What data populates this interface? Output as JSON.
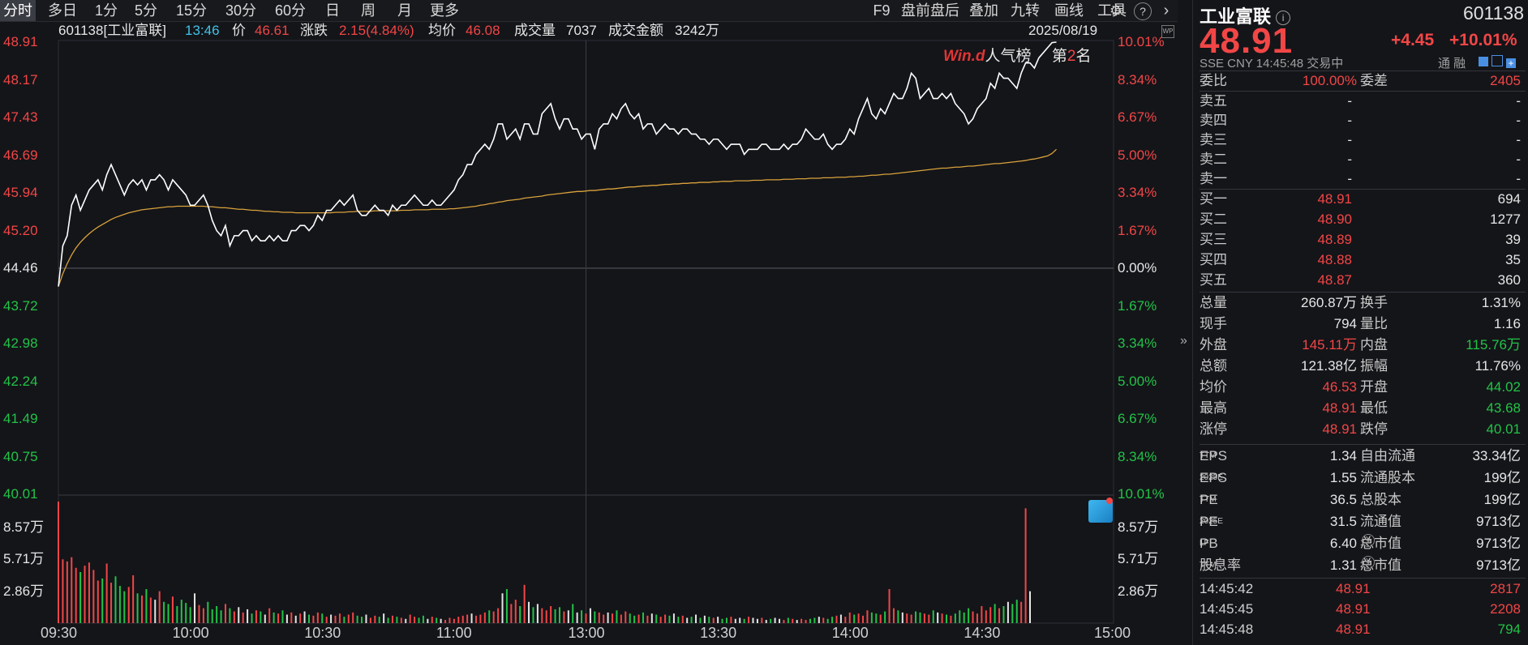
{
  "toolbar": {
    "periods": [
      "分时",
      "多日",
      "1分",
      "5分",
      "15分",
      "30分",
      "60分",
      "日",
      "周",
      "月",
      "更多"
    ],
    "active_period": "分时",
    "tools": [
      "F9",
      "盘前盘后",
      "叠加",
      "九转",
      "画线",
      "工具"
    ]
  },
  "info": {
    "code_name": "601138[工业富联]",
    "time": "13:46",
    "price_label": "价",
    "price": "46.61",
    "change_label": "涨跌",
    "change": "2.15(4.84%)",
    "avg_label": "均价",
    "avg": "46.08",
    "volume_label": "成交量",
    "volume": "7037",
    "amount_label": "成交金额",
    "amount": "3242万",
    "date": "2025/08/19"
  },
  "rank": {
    "logo": "Win.d",
    "label": "人气榜",
    "prefix": "第",
    "value": "2",
    "suffix": "名"
  },
  "chart_data": {
    "type": "line",
    "price_axis": {
      "left_ticks": [
        "48.91",
        "48.17",
        "47.43",
        "46.69",
        "45.94",
        "45.20",
        "44.46",
        "43.72",
        "42.98",
        "42.24",
        "41.49",
        "40.75",
        "40.01"
      ],
      "right_ticks": [
        "10.01%",
        "8.34%",
        "6.67%",
        "5.00%",
        "3.34%",
        "1.67%",
        "0.00%",
        "1.67%",
        "3.34%",
        "5.00%",
        "6.67%",
        "8.34%",
        "10.01%"
      ],
      "prev_close": 44.46,
      "ylim": [
        40.01,
        48.91
      ]
    },
    "volume_axis": {
      "ticks": [
        "8.57万",
        "5.71万",
        "2.86万"
      ],
      "ylim": [
        0,
        114300
      ]
    },
    "x_ticks": [
      "09:30",
      "10:00",
      "10:30",
      "11:00",
      "13:00",
      "13:30",
      "14:00",
      "14:30",
      "15:00"
    ],
    "colors": {
      "price_line": "#ffffff",
      "avg_line": "#d9a23c",
      "up": "#f24646",
      "down": "#22c348",
      "neutral": "#e6e6e6"
    },
    "series": [
      {
        "values": [
          44.1,
          44.9,
          45.1,
          45.7,
          45.9,
          45.6,
          45.8,
          46.0,
          46.1,
          46.2,
          46.0,
          46.3,
          46.5,
          46.3,
          46.1,
          45.9,
          46.1,
          46.2,
          46.1,
          46.2,
          46.0,
          46.2,
          46.2,
          46.3,
          46.2,
          46.0,
          46.2,
          46.1,
          46.0,
          45.9,
          45.7,
          45.7,
          45.8,
          45.9,
          45.7,
          45.4,
          45.2,
          45.1,
          45.3,
          44.9,
          45.1,
          45.1,
          45.2,
          45.2,
          45.0,
          45.1,
          45.0,
          45.0,
          45.1,
          45.0,
          45.1,
          45.0,
          45.0,
          45.2,
          45.2,
          45.3,
          45.3,
          45.2,
          45.3,
          45.5,
          45.4,
          45.6,
          45.6,
          45.7,
          45.8,
          45.7,
          45.8,
          45.9,
          45.6,
          45.5,
          45.5,
          45.6,
          45.7,
          45.6,
          45.6,
          45.5,
          45.7,
          45.6,
          45.7,
          45.7,
          45.8,
          45.9,
          45.8,
          45.7,
          45.7,
          45.8,
          45.7,
          45.7,
          45.8,
          45.9,
          46.0,
          46.2,
          46.3,
          46.5,
          46.5,
          46.7,
          46.8,
          46.9,
          46.8,
          47.0,
          47.3,
          47.3,
          47.0,
          47.1,
          47.2,
          47.0,
          47.3,
          47.3,
          47.1,
          47.1,
          47.5,
          47.6,
          47.7,
          47.4,
          47.2,
          47.4,
          47.4,
          47.2,
          47.2,
          47.0,
          47.1,
          47.1,
          46.8,
          47.2,
          47.3,
          47.3,
          47.5,
          47.4,
          47.6,
          47.7,
          47.5,
          47.4,
          47.5,
          47.2,
          47.3,
          47.3,
          47.1,
          47.2,
          47.3,
          47.2,
          47.2,
          47.1,
          47.2,
          47.2,
          47.1,
          47.1,
          47.0,
          47.0,
          46.9,
          47.0,
          47.0,
          46.9,
          46.8,
          46.9,
          46.9,
          46.9,
          46.7,
          46.8,
          46.8,
          46.8,
          46.9,
          46.9,
          46.8,
          46.8,
          46.8,
          46.9,
          46.8,
          46.9,
          46.9,
          47.0,
          47.2,
          47.1,
          47.0,
          47.0,
          47.1,
          46.9,
          46.8,
          46.9,
          46.9,
          47.0,
          47.2,
          47.1,
          47.4,
          47.6,
          47.8,
          47.5,
          47.4,
          47.6,
          47.5,
          47.7,
          47.9,
          47.8,
          47.8,
          48.0,
          48.3,
          48.2,
          47.8,
          47.9,
          48.0,
          47.8,
          47.8,
          47.9,
          47.8,
          47.9,
          47.7,
          47.6,
          47.5,
          47.3,
          47.4,
          47.6,
          47.7,
          47.8,
          48.1,
          48.0,
          48.3,
          48.2,
          48.2,
          48.1,
          48.0,
          48.3,
          48.5,
          48.5,
          48.4,
          48.6,
          48.7,
          48.8,
          48.9,
          48.91
        ]
      },
      {
        "values": [
          44.1,
          44.35,
          44.55,
          44.72,
          44.86,
          44.97,
          45.06,
          45.14,
          45.21,
          45.27,
          45.32,
          45.37,
          45.42,
          45.46,
          45.49,
          45.52,
          45.55,
          45.57,
          45.59,
          45.61,
          45.62,
          45.63,
          45.64,
          45.65,
          45.66,
          45.67,
          45.67,
          45.68,
          45.68,
          45.68,
          45.68,
          45.68,
          45.68,
          45.68,
          45.67,
          45.67,
          45.66,
          45.65,
          45.65,
          45.64,
          45.63,
          45.62,
          45.62,
          45.61,
          45.6,
          45.6,
          45.59,
          45.58,
          45.58,
          45.57,
          45.57,
          45.56,
          45.56,
          45.56,
          45.55,
          45.55,
          45.55,
          45.55,
          45.55,
          45.55,
          45.55,
          45.55,
          45.55,
          45.56,
          45.56,
          45.56,
          45.57,
          45.57,
          45.58,
          45.58,
          45.58,
          45.58,
          45.59,
          45.59,
          45.59,
          45.59,
          45.59,
          45.59,
          45.6,
          45.6,
          45.6,
          45.61,
          45.61,
          45.61,
          45.61,
          45.62,
          45.62,
          45.62,
          45.62,
          45.63,
          45.63,
          45.64,
          45.65,
          45.66,
          45.67,
          45.68,
          45.7,
          45.71,
          45.73,
          45.74,
          45.76,
          45.77,
          45.79,
          45.8,
          45.81,
          45.82,
          45.84,
          45.85,
          45.86,
          45.87,
          45.88,
          45.9,
          45.91,
          45.92,
          45.93,
          45.94,
          45.95,
          45.96,
          45.97,
          45.97,
          45.98,
          45.99,
          45.99,
          46.0,
          46.01,
          46.02,
          46.02,
          46.03,
          46.04,
          46.05,
          46.06,
          46.06,
          46.07,
          46.08,
          46.08,
          46.09,
          46.09,
          46.1,
          46.11,
          46.11,
          46.12,
          46.12,
          46.13,
          46.13,
          46.14,
          46.14,
          46.15,
          46.15,
          46.15,
          46.16,
          46.16,
          46.17,
          46.17,
          46.17,
          46.18,
          46.18,
          46.18,
          46.18,
          46.19,
          46.19,
          46.19,
          46.2,
          46.2,
          46.2,
          46.2,
          46.21,
          46.21,
          46.21,
          46.22,
          46.22,
          46.22,
          46.23,
          46.23,
          46.23,
          46.24,
          46.24,
          46.24,
          46.25,
          46.25,
          46.25,
          46.26,
          46.26,
          46.27,
          46.27,
          46.28,
          46.29,
          46.29,
          46.3,
          46.31,
          46.31,
          46.32,
          46.33,
          46.34,
          46.35,
          46.36,
          46.37,
          46.38,
          46.39,
          46.4,
          46.41,
          46.42,
          46.43,
          46.43,
          46.44,
          46.45,
          46.45,
          46.46,
          46.47,
          46.47,
          46.48,
          46.49,
          46.5,
          46.51,
          46.52,
          46.52,
          46.53,
          46.54,
          46.55,
          46.56,
          46.57,
          46.58,
          46.6,
          46.61,
          46.63,
          46.65,
          46.67,
          46.72,
          46.8
        ]
      }
    ],
    "volume": [
      114300,
      60000,
      58000,
      62000,
      52000,
      48000,
      54000,
      57000,
      50000,
      40000,
      42000,
      56000,
      38000,
      44000,
      35000,
      30000,
      34000,
      45000,
      28000,
      26000,
      32000,
      24000,
      22000,
      30000,
      20000,
      18000,
      25000,
      16000,
      22000,
      19000,
      15000,
      28000,
      17000,
      14000,
      20000,
      13000,
      16000,
      12000,
      18000,
      14000,
      11000,
      15000,
      10000,
      13000,
      9000,
      12000,
      11000,
      8000,
      14000,
      10000,
      9000,
      12000,
      8000,
      10000,
      7000,
      9000,
      11000,
      8000,
      7000,
      10000,
      9000,
      6000,
      8000,
      7000,
      9000,
      6000,
      8000,
      10000,
      7000,
      6000,
      8000,
      5000,
      7000,
      6000,
      9000,
      5000,
      7000,
      6000,
      5000,
      4000,
      8000,
      6000,
      5000,
      7000,
      4000,
      6000,
      5000,
      4000,
      3000,
      5000,
      4000,
      6000,
      7000,
      8000,
      9000,
      7000,
      8000,
      10000,
      12000,
      11000,
      14000,
      28000,
      32000,
      18000,
      22000,
      16000,
      36000,
      20000,
      15000,
      18000,
      14000,
      12000,
      16000,
      13000,
      15000,
      11000,
      12000,
      18000,
      10000,
      12000,
      9000,
      14000,
      11000,
      10000,
      8000,
      10000,
      9000,
      12000,
      8000,
      11000,
      9000,
      7000,
      8000,
      10000,
      7000,
      9000,
      8000,
      6000,
      8000,
      7000,
      9000,
      6000,
      7000,
      5000,
      6000,
      8000,
      5000,
      7000,
      6000,
      5000,
      6000,
      4000,
      5000,
      6000,
      4000,
      5000,
      4000,
      6000,
      5000,
      4000,
      5000,
      3000,
      4000,
      5000,
      4000,
      3000,
      5000,
      4000,
      3000,
      4000,
      3000,
      4000,
      5000,
      6000,
      5000,
      4000,
      6000,
      7000,
      8000,
      6000,
      10000,
      8000,
      9000,
      7000,
      12000,
      10000,
      9000,
      8000,
      11000,
      32000,
      14000,
      12000,
      10000,
      9000,
      8000,
      11000,
      10000,
      9000,
      8000,
      12000,
      10000,
      9000,
      8000,
      7000,
      9000,
      12000,
      10000,
      14000,
      11000,
      9000,
      16000,
      12000,
      15000,
      18000,
      14000,
      16000,
      20000,
      18000,
      22000,
      20000,
      108000,
      30000
    ]
  },
  "panel": {
    "name": "工业富联",
    "code": "601138",
    "price": "48.91",
    "change": "+4.45",
    "change_pct": "+10.01%",
    "sub": "SSE  CNY  14:45:48  交易中",
    "sub_right": "通  融",
    "weibi_label": "委比",
    "weibi": "100.00%",
    "weicha_label": "委差",
    "weicha": "2405",
    "sell": [
      {
        "label": "卖五",
        "price": "-",
        "vol": "-"
      },
      {
        "label": "卖四",
        "price": "-",
        "vol": "-"
      },
      {
        "label": "卖三",
        "price": "-",
        "vol": "-"
      },
      {
        "label": "卖二",
        "price": "-",
        "vol": "-"
      },
      {
        "label": "卖一",
        "price": "-",
        "vol": "-"
      }
    ],
    "buy": [
      {
        "label": "买一",
        "price": "48.91",
        "vol": "694"
      },
      {
        "label": "买二",
        "price": "48.90",
        "vol": "1277"
      },
      {
        "label": "买三",
        "price": "48.89",
        "vol": "39"
      },
      {
        "label": "买四",
        "price": "48.88",
        "vol": "35"
      },
      {
        "label": "买五",
        "price": "48.87",
        "vol": "360"
      }
    ],
    "stats": [
      {
        "l1": "总量",
        "v1": "260.87万",
        "c1": "white",
        "l2": "换手",
        "v2": "1.31%",
        "c2": "white"
      },
      {
        "l1": "现手",
        "v1": "794",
        "c1": "white",
        "l2": "量比",
        "v2": "1.16",
        "c2": "white"
      },
      {
        "l1": "外盘",
        "v1": "145.11万",
        "c1": "red",
        "l2": "内盘",
        "v2": "115.76万",
        "c2": "green"
      },
      {
        "l1": "总额",
        "v1": "121.38亿",
        "c1": "white",
        "l2": "振幅",
        "v2": "11.76%",
        "c2": "white"
      },
      {
        "l1": "均价",
        "v1": "46.53",
        "c1": "red",
        "l2": "开盘",
        "v2": "44.02",
        "c2": "green"
      },
      {
        "l1": "最高",
        "v1": "48.91",
        "c1": "red",
        "l2": "最低",
        "v2": "43.68",
        "c2": "green"
      },
      {
        "l1": "涨停",
        "v1": "48.91",
        "c1": "red",
        "l2": "跌停",
        "v2": "40.01",
        "c2": "green"
      }
    ],
    "fundamentals": [
      {
        "l1": "EPS",
        "s1": "TTM",
        "v1": "1.34",
        "l2": "自由流通",
        "s2": "",
        "v2": "33.34亿"
      },
      {
        "l1": "EPS",
        "s1": "2025E",
        "v1": "1.55",
        "l2": "流通股本",
        "s2": "",
        "v2": "199亿"
      },
      {
        "l1": "PE",
        "s1": "TTM",
        "v1": "36.5",
        "l2": "总股本",
        "s2": "",
        "v2": "199亿"
      },
      {
        "l1": "PE",
        "s1": "2025E",
        "v1": "31.5",
        "l2": "流通值",
        "s2": "",
        "v2": "9713亿"
      },
      {
        "l1": "PB",
        "s1": "LF",
        "v1": "6.40",
        "l2": "总市值",
        "s2": "1",
        "v2": "9713亿"
      },
      {
        "l1": "股息率",
        "s1": "TTM",
        "v1": "1.31",
        "l2": "总市值",
        "s2": "2",
        "v2": "9713亿"
      }
    ],
    "ticks": [
      {
        "time": "14:45:42",
        "price": "48.91",
        "vol": "2817"
      },
      {
        "time": "14:45:45",
        "price": "48.91",
        "vol": "2208"
      },
      {
        "time": "14:45:48",
        "price": "48.91",
        "vol": "794"
      }
    ]
  }
}
